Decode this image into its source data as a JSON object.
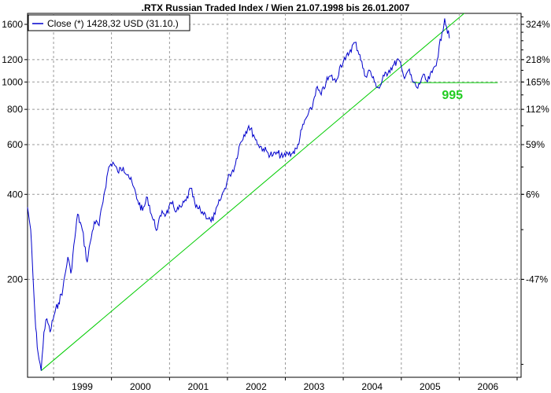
{
  "chart_data": {
    "type": "line",
    "title": ".RTX Russian Traded Index / Wien 21.07.1998 bis 26.01.2007",
    "xlabel": "",
    "ylabel": "",
    "y_scale": "log",
    "ylim": [
      90,
      1750
    ],
    "xlim": [
      "1998-07-21",
      "2007-01-26"
    ],
    "x_ticks": [
      "1999",
      "2000",
      "2001",
      "2002",
      "2003",
      "2004",
      "2005",
      "2006"
    ],
    "y_ticks_left": [
      "200",
      "400",
      "600",
      "800",
      "1000",
      "1200",
      "1600"
    ],
    "y_ticks_right": [
      "-47%",
      "6%",
      "59%",
      "112%",
      "165%",
      "218%",
      "324%"
    ],
    "grid": true,
    "legend": {
      "placement": "top-left",
      "entry": "Close (*) 1428,32 USD (31.10.)"
    },
    "colors": {
      "series": "#0000cc",
      "trend": "#00cc00",
      "grid": "#999999"
    },
    "series": [
      {
        "name": "Close (*) 1428,32 USD (31.10.)",
        "x": [
          "1998-07-21",
          "1998-08-10",
          "1998-08-25",
          "1998-09-10",
          "1998-09-25",
          "1998-10-15",
          "1998-11-01",
          "1998-11-20",
          "1998-12-10",
          "1999-01-05",
          "1999-02-01",
          "1999-03-01",
          "1999-04-01",
          "1999-04-20",
          "1999-05-15",
          "1999-06-01",
          "1999-07-01",
          "1999-08-01",
          "1999-08-20",
          "1999-09-15",
          "1999-10-15",
          "1999-11-15",
          "1999-12-15",
          "2000-01-10",
          "2000-02-10",
          "2000-03-15",
          "2000-04-15",
          "2000-05-15",
          "2000-06-15",
          "2000-07-15",
          "2000-08-15",
          "2000-09-15",
          "2000-10-15",
          "2000-11-15",
          "2000-12-10",
          "2001-01-15",
          "2001-02-15",
          "2001-03-15",
          "2001-04-15",
          "2001-05-15",
          "2001-06-15",
          "2001-07-15",
          "2001-08-15",
          "2001-09-20",
          "2001-10-15",
          "2001-11-15",
          "2001-12-15",
          "2002-01-15",
          "2002-02-15",
          "2002-03-15",
          "2002-04-15",
          "2002-05-15",
          "2002-06-15",
          "2002-07-15",
          "2002-08-15",
          "2002-09-15",
          "2002-10-15",
          "2002-11-15",
          "2002-12-15",
          "2003-01-15",
          "2003-02-15",
          "2003-03-15",
          "2003-04-15",
          "2003-05-15",
          "2003-06-15",
          "2003-07-15",
          "2003-08-15",
          "2003-09-15",
          "2003-10-15",
          "2003-11-15",
          "2003-12-15",
          "2004-01-15",
          "2004-02-15",
          "2004-03-15",
          "2004-04-15",
          "2004-05-15",
          "2004-06-15",
          "2004-07-15",
          "2004-08-15",
          "2004-09-15",
          "2004-10-15",
          "2004-11-15",
          "2004-12-15",
          "2005-01-15",
          "2005-02-15",
          "2005-03-15",
          "2005-04-15",
          "2005-05-15",
          "2005-06-15",
          "2005-07-15",
          "2005-08-15",
          "2005-09-15",
          "2005-10-01",
          "2005-10-31"
        ],
        "values": [
          360,
          300,
          200,
          135,
          110,
          95,
          130,
          145,
          130,
          150,
          165,
          185,
          240,
          210,
          280,
          340,
          300,
          230,
          270,
          320,
          310,
          400,
          500,
          520,
          480,
          500,
          470,
          430,
          380,
          350,
          390,
          330,
          300,
          350,
          340,
          370,
          350,
          360,
          380,
          420,
          360,
          350,
          340,
          320,
          340,
          380,
          420,
          470,
          500,
          590,
          650,
          700,
          650,
          600,
          580,
          560,
          550,
          560,
          540,
          560,
          560,
          580,
          680,
          750,
          800,
          950,
          900,
          1000,
          1050,
          1000,
          1150,
          1200,
          1300,
          1380,
          1250,
          1050,
          1100,
          1000,
          950,
          1050,
          1100,
          1150,
          1200,
          1050,
          1100,
          1000,
          950,
          1050,
          1000,
          1080,
          1200,
          1500,
          1680,
          1428
        ]
      }
    ],
    "trendlines": [
      {
        "x": [
          "1998-10-15",
          "2006-02-01"
        ],
        "values": [
          95,
          1750
        ]
      },
      {
        "x": [
          "2005-03-15",
          "2006-09-01"
        ],
        "values": [
          995,
          995
        ]
      }
    ],
    "annotations": [
      {
        "text": "995",
        "x": "2005-08-15",
        "value": 995
      }
    ]
  }
}
